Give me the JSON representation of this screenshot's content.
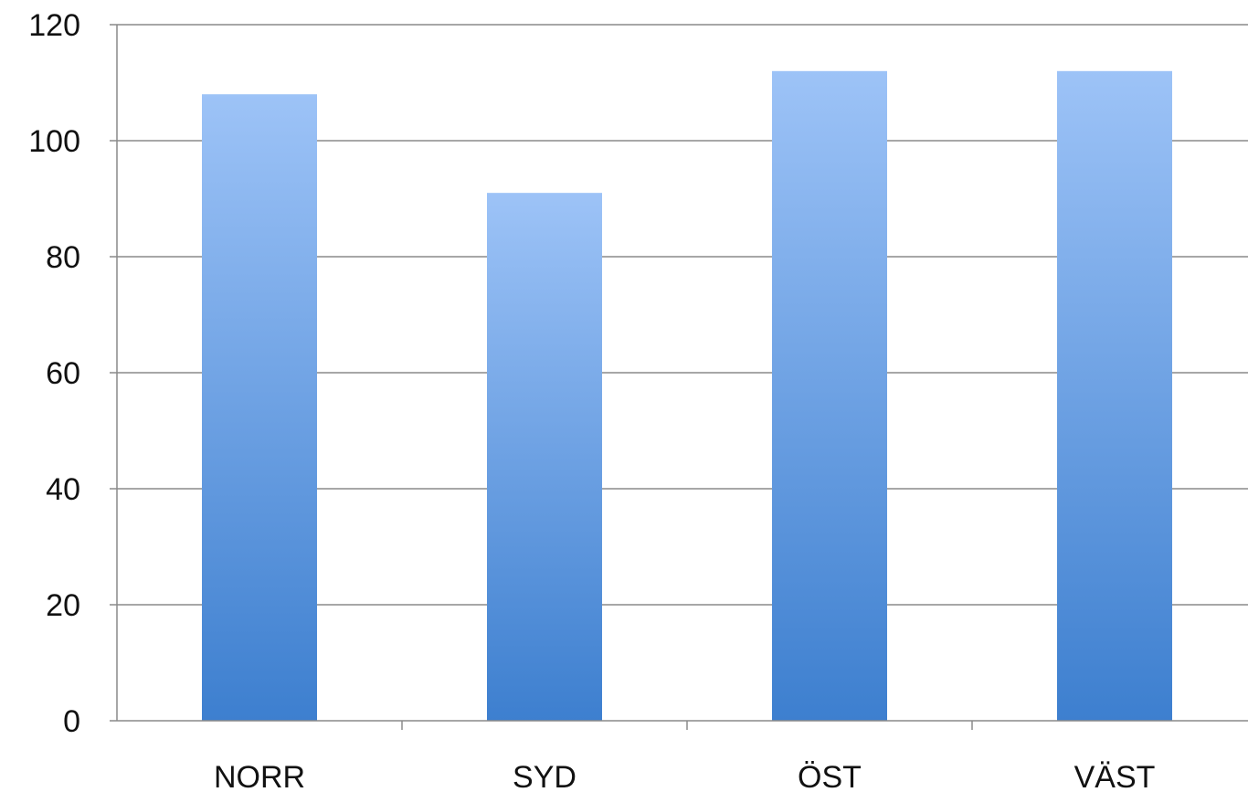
{
  "chart_data": {
    "type": "bar",
    "title": "",
    "xlabel": "",
    "ylabel": "",
    "categories": [
      "NORR",
      "SYD",
      "ÖST",
      "VÄST"
    ],
    "series": [
      {
        "values": [
          108,
          91,
          112,
          112
        ]
      }
    ],
    "ylim": [
      0,
      120
    ],
    "yticks": [
      0,
      20,
      40,
      60,
      80,
      100,
      120
    ],
    "grid": true,
    "legend": "none",
    "colors": {
      "bar_top": "#9dc3f7",
      "bar_bottom": "#3d7fcf",
      "grid": "#8a8a8a",
      "axis": "#8a8a8a"
    }
  }
}
